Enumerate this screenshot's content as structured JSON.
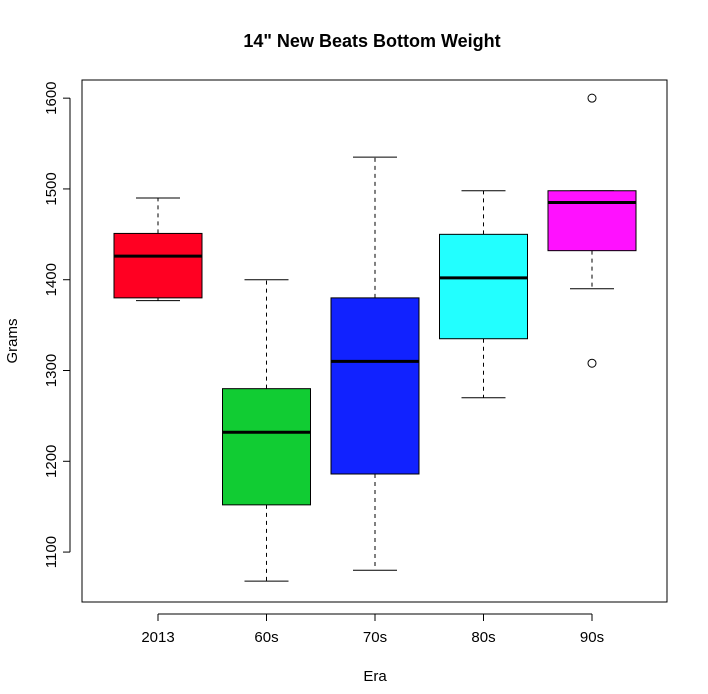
{
  "chart_data": {
    "type": "boxplot",
    "title": "14\" New Beats Bottom Weight",
    "xlabel": "Era",
    "ylabel": "Grams",
    "ylim": [
      1045,
      1620
    ],
    "yticks": [
      1100,
      1200,
      1300,
      1400,
      1500,
      1600
    ],
    "categories": [
      "2013",
      "60s",
      "70s",
      "80s",
      "90s"
    ],
    "boxes": [
      {
        "name": "2013",
        "color": "#ff0022",
        "whisker_low": 1377,
        "q1": 1380,
        "median": 1426,
        "q3": 1451,
        "whisker_high": 1490,
        "outliers": []
      },
      {
        "name": "60s",
        "color": "#11cc33",
        "whisker_low": 1068,
        "q1": 1152,
        "median": 1232,
        "q3": 1280,
        "whisker_high": 1400,
        "outliers": []
      },
      {
        "name": "70s",
        "color": "#1122ff",
        "whisker_low": 1080,
        "q1": 1186,
        "median": 1310,
        "q3": 1380,
        "whisker_high": 1535,
        "outliers": []
      },
      {
        "name": "80s",
        "color": "#22ffff",
        "whisker_low": 1270,
        "q1": 1335,
        "median": 1402,
        "q3": 1450,
        "whisker_high": 1498,
        "outliers": []
      },
      {
        "name": "90s",
        "color": "#ff11ff",
        "whisker_low": 1390,
        "q1": 1432,
        "median": 1485,
        "q3": 1498,
        "whisker_high": 1498,
        "outliers": [
          1600,
          1308
        ]
      }
    ]
  }
}
